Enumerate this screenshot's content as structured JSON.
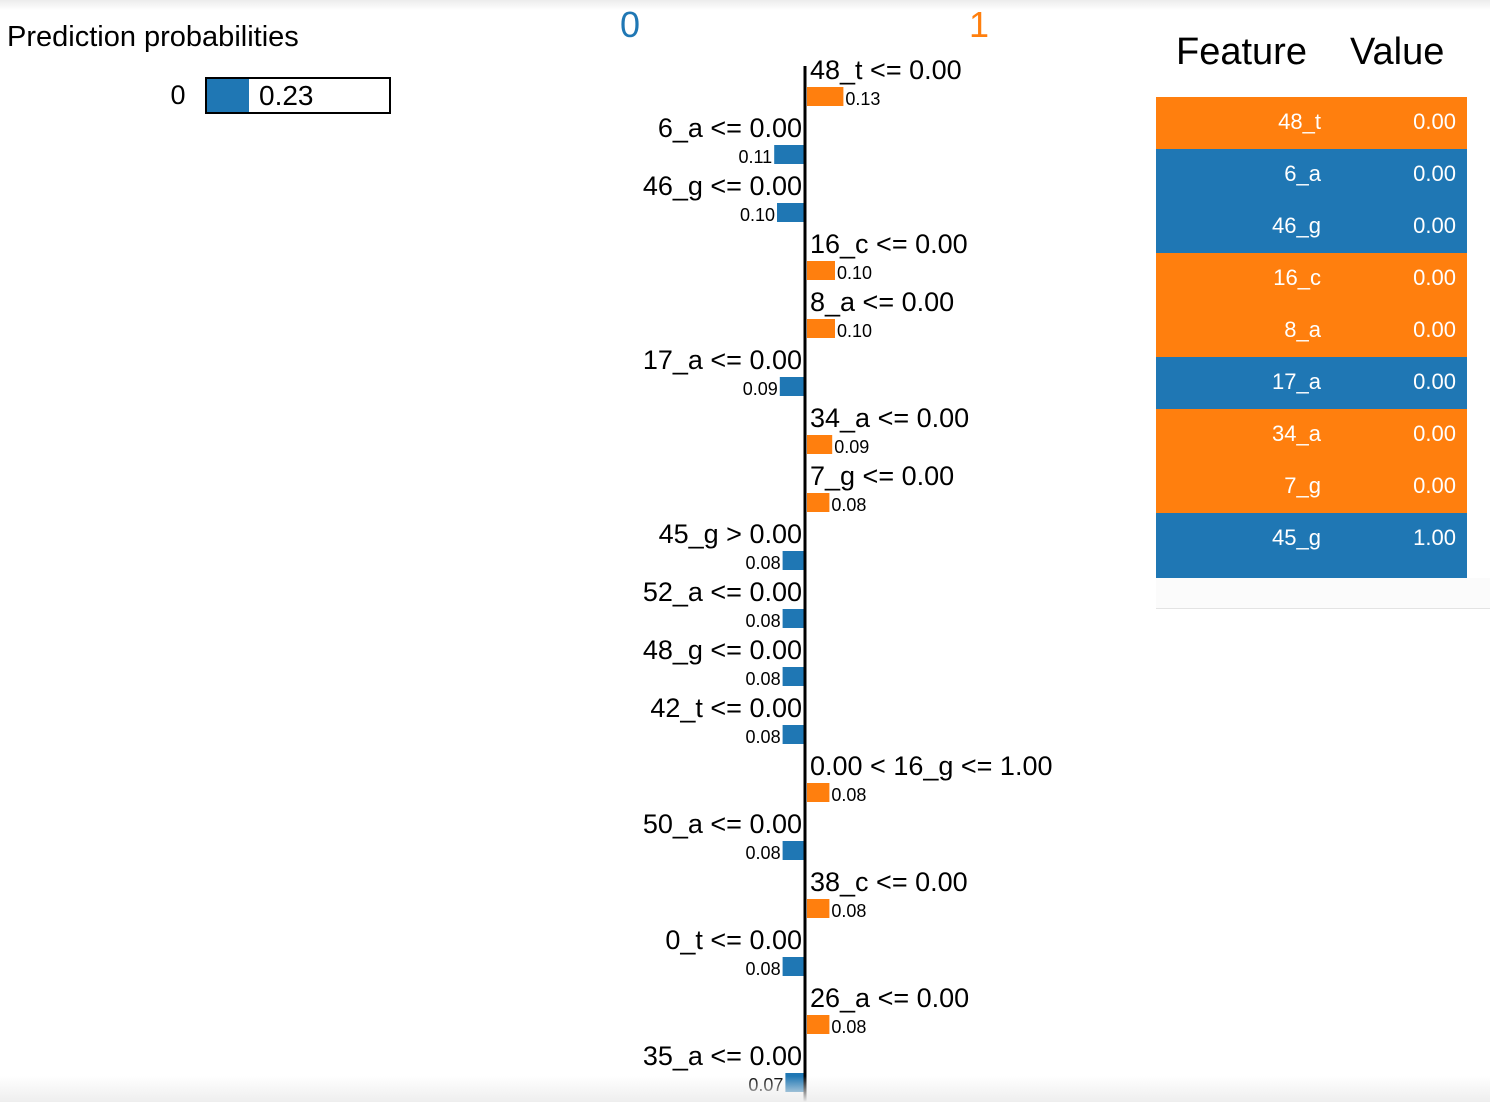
{
  "colors": {
    "class_0": "#1f77b4",
    "class_1": "#ff7f0e"
  },
  "prediction_probabilities": {
    "title": "Prediction probabilities",
    "items": [
      {
        "label": "0",
        "value": 0.23,
        "display": "0.23",
        "color": "#1f77b4"
      }
    ]
  },
  "chart_data": {
    "type": "bar",
    "orientation": "horizontal-diverging",
    "class_labels": {
      "negative": "0",
      "positive": "1"
    },
    "features": [
      {
        "label": "48_t <= 0.00",
        "weight": 0.13,
        "display": "0.13",
        "side": "1"
      },
      {
        "label": "6_a <= 0.00",
        "weight": 0.11,
        "display": "0.11",
        "side": "0"
      },
      {
        "label": "46_g <= 0.00",
        "weight": 0.1,
        "display": "0.10",
        "side": "0"
      },
      {
        "label": "16_c <= 0.00",
        "weight": 0.1,
        "display": "0.10",
        "side": "1"
      },
      {
        "label": "8_a <= 0.00",
        "weight": 0.1,
        "display": "0.10",
        "side": "1"
      },
      {
        "label": "17_a <= 0.00",
        "weight": 0.09,
        "display": "0.09",
        "side": "0"
      },
      {
        "label": "34_a <= 0.00",
        "weight": 0.09,
        "display": "0.09",
        "side": "1"
      },
      {
        "label": "7_g <= 0.00",
        "weight": 0.08,
        "display": "0.08",
        "side": "1"
      },
      {
        "label": "45_g > 0.00",
        "weight": 0.08,
        "display": "0.08",
        "side": "0"
      },
      {
        "label": "52_a <= 0.00",
        "weight": 0.08,
        "display": "0.08",
        "side": "0"
      },
      {
        "label": "48_g <= 0.00",
        "weight": 0.08,
        "display": "0.08",
        "side": "0"
      },
      {
        "label": "42_t <= 0.00",
        "weight": 0.08,
        "display": "0.08",
        "side": "0"
      },
      {
        "label": "0.00 < 16_g <= 1.00",
        "weight": 0.08,
        "display": "0.08",
        "side": "1"
      },
      {
        "label": "50_a <= 0.00",
        "weight": 0.08,
        "display": "0.08",
        "side": "0"
      },
      {
        "label": "38_c <= 0.00",
        "weight": 0.08,
        "display": "0.08",
        "side": "1"
      },
      {
        "label": "0_t <= 0.00",
        "weight": 0.08,
        "display": "0.08",
        "side": "0"
      },
      {
        "label": "26_a <= 0.00",
        "weight": 0.08,
        "display": "0.08",
        "side": "1"
      },
      {
        "label": "35_a <= 0.00",
        "weight": 0.07,
        "display": "0.07",
        "side": "0"
      }
    ]
  },
  "feature_table": {
    "headers": {
      "feature": "Feature",
      "value": "Value"
    },
    "rows": [
      {
        "feature": "48_t",
        "value": "0.00",
        "side": "1"
      },
      {
        "feature": "6_a",
        "value": "0.00",
        "side": "0"
      },
      {
        "feature": "46_g",
        "value": "0.00",
        "side": "0"
      },
      {
        "feature": "16_c",
        "value": "0.00",
        "side": "1"
      },
      {
        "feature": "8_a",
        "value": "0.00",
        "side": "1"
      },
      {
        "feature": "17_a",
        "value": "0.00",
        "side": "0"
      },
      {
        "feature": "34_a",
        "value": "0.00",
        "side": "1"
      },
      {
        "feature": "7_g",
        "value": "0.00",
        "side": "1"
      },
      {
        "feature": "45_g",
        "value": "1.00",
        "side": "0"
      }
    ]
  }
}
